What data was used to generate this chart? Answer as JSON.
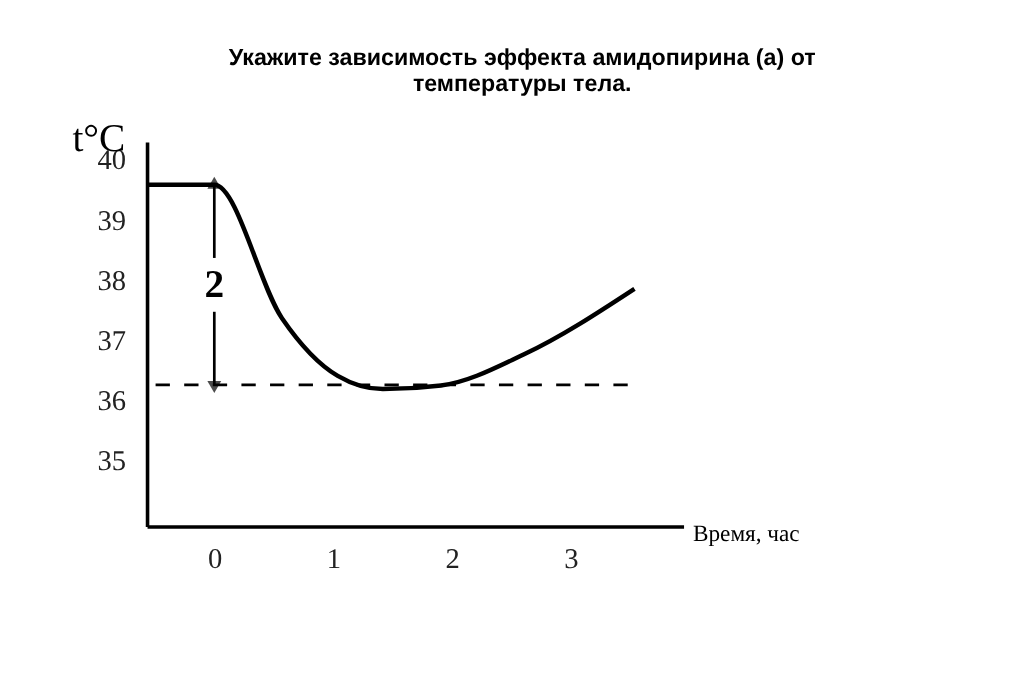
{
  "chart_data": {
    "type": "line",
    "title": "Укажите зависимость эффекта амидопирина (а) от\nтемпературы тела.",
    "xlabel": "Время, час",
    "ylabel": "t°C",
    "x": [
      -0.57,
      0,
      0.57,
      1.04,
      1.42,
      1.91,
      2.61,
      3.54
    ],
    "series": [
      {
        "color": "#000000",
        "values": [
          39.58,
          39.58,
          37.36,
          36.4,
          36.18,
          36.24,
          36.76,
          37.85
        ]
      }
    ],
    "xlim": [
      -0.57,
      3.95
    ],
    "xticks": [
      0,
      1,
      2,
      3
    ],
    "ylim": [
      33.9,
      40.3
    ],
    "yticks": [
      35,
      36,
      37,
      38,
      39,
      40
    ],
    "ref_lines": [
      {
        "axis": "y",
        "value": 36.25,
        "line_style": "dashed",
        "color": "#000000"
      }
    ],
    "annotations": [
      {
        "text": "2",
        "x": 0,
        "y": 39.58
      }
    ],
    "grid": false,
    "marker": "none",
    "line_style": "solid"
  }
}
